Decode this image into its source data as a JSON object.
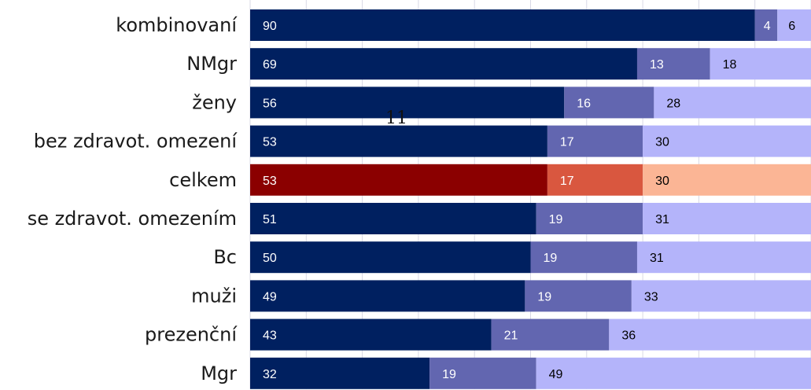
{
  "chart_data": {
    "type": "bar",
    "orientation": "horizontal",
    "stacked": true,
    "categories": [
      "kombinovaní",
      "NMgr",
      "ženy",
      "bez zdravot. omezení",
      "celkem",
      "se zdravot. omezením",
      "Bc",
      "muži",
      "prezenční",
      "Mgr"
    ],
    "series": [
      {
        "values": [
          90,
          69,
          56,
          53,
          53,
          51,
          50,
          49,
          43,
          32
        ]
      },
      {
        "values": [
          4,
          13,
          16,
          17,
          17,
          19,
          19,
          19,
          21,
          19
        ]
      },
      {
        "values": [
          6,
          18,
          28,
          30,
          30,
          31,
          31,
          33,
          36,
          49
        ]
      }
    ],
    "xlim": [
      0,
      100
    ],
    "grid": true,
    "legend": "none",
    "highlight_category": "celkem",
    "title": "",
    "xlabel": "",
    "ylabel": "",
    "annotation": "11"
  },
  "colors": {
    "normal": [
      "#002060",
      "#6266b0",
      "#b4b4fa"
    ],
    "highlight": [
      "#8b0000",
      "#d9573f",
      "#fbb595"
    ],
    "label_light": "#ffffff",
    "label_dark": "#000000",
    "grid": "#d9d9e6"
  }
}
